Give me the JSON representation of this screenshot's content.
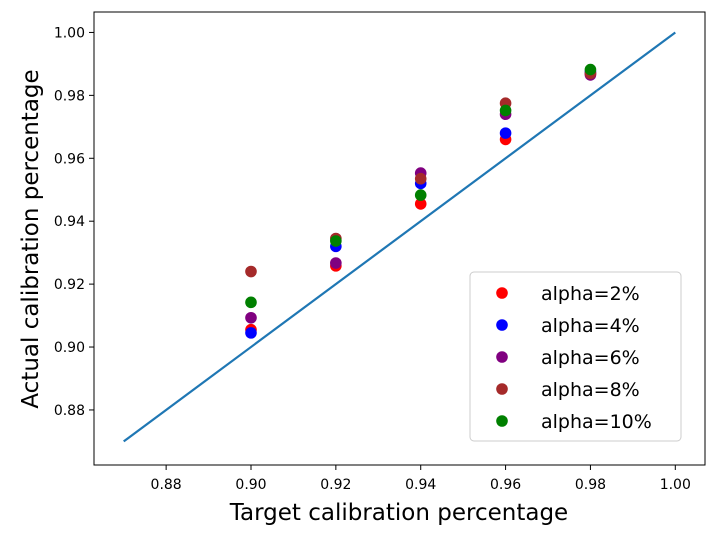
{
  "chart_data": {
    "type": "scatter",
    "title": "",
    "xlabel": "Target calibration percentage",
    "ylabel": "Actual calibration percentage",
    "xlim": [
      0.863,
      1.007
    ],
    "ylim": [
      0.8625,
      1.0065
    ],
    "xticks": [
      0.88,
      0.9,
      0.92,
      0.94,
      0.96,
      0.98,
      1.0
    ],
    "xtick_labels": [
      "0.88",
      "0.90",
      "0.92",
      "0.94",
      "0.96",
      "0.98",
      "1.00"
    ],
    "yticks": [
      0.88,
      0.9,
      0.92,
      0.94,
      0.96,
      0.98,
      1.0
    ],
    "ytick_labels": [
      "0.88",
      "0.90",
      "0.92",
      "0.94",
      "0.96",
      "0.98",
      "1.00"
    ],
    "grid": false,
    "legend_position": "lower-right",
    "reference_line": {
      "x": [
        0.87,
        1.0
      ],
      "y": [
        0.87,
        1.0
      ],
      "color": "#1f77b4"
    },
    "x": [
      0.9,
      0.92,
      0.94,
      0.96,
      0.98
    ],
    "series": [
      {
        "name": "alpha=2%",
        "color": "#ff0000",
        "values": [
          0.9055,
          0.9258,
          0.9455,
          0.966,
          0.987
        ]
      },
      {
        "name": "alpha=4%",
        "color": "#0000ff",
        "values": [
          0.9045,
          0.932,
          0.952,
          0.968,
          0.9875
        ]
      },
      {
        "name": "alpha=6%",
        "color": "#800080",
        "values": [
          0.9093,
          0.9267,
          0.9553,
          0.974,
          0.9865
        ]
      },
      {
        "name": "alpha=8%",
        "color": "#a52a2a",
        "values": [
          0.924,
          0.9345,
          0.9535,
          0.9775,
          0.987
        ]
      },
      {
        "name": "alpha=10%",
        "color": "#008000",
        "values": [
          0.9142,
          0.9337,
          0.9483,
          0.9752,
          0.9882
        ]
      }
    ]
  }
}
